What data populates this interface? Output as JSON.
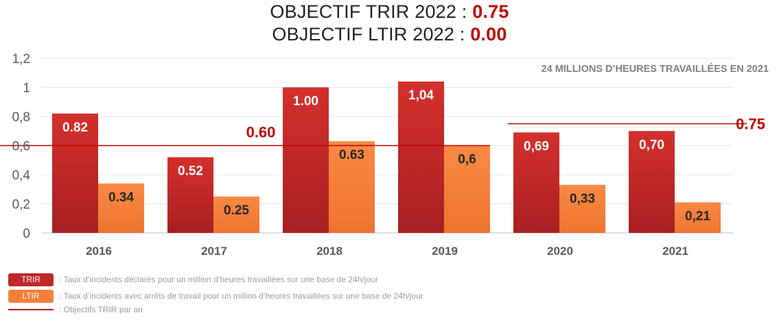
{
  "titles": {
    "trir": {
      "label": "OBJECTIF TRIR 2022 : ",
      "value": "0.75"
    },
    "ltir": {
      "label": "OBJECTIF LTIR 2022 : ",
      "value": "0.00"
    }
  },
  "chart_data": {
    "type": "bar",
    "categories": [
      "2016",
      "2017",
      "2018",
      "2019",
      "2020",
      "2021"
    ],
    "series": [
      {
        "name": "TRIR",
        "color": "#c0282a",
        "values": [
          0.82,
          0.52,
          1.0,
          1.04,
          0.69,
          0.7
        ],
        "labels": [
          "0.82",
          "0.52",
          "1.00",
          "1,04",
          "0,69",
          "0,70"
        ]
      },
      {
        "name": "LTIR",
        "color": "#f47f3b",
        "values": [
          0.34,
          0.25,
          0.63,
          0.6,
          0.33,
          0.21
        ],
        "labels": [
          "0.34",
          "0.25",
          "0.63",
          "0,6",
          "0,33",
          "0,21"
        ]
      }
    ],
    "ylim": [
      0,
      1.2
    ],
    "yticks": [
      0,
      0.2,
      0.4,
      0.6,
      0.8,
      1.0,
      1.2
    ],
    "ytick_labels": [
      "0",
      "0,2",
      "0,4",
      "0,6",
      "0,8",
      "1",
      "1,2"
    ],
    "grid": true,
    "objective_lines": [
      {
        "value": 0.6,
        "label": "0.60",
        "from_category": "2016",
        "to_category": "2019",
        "color": "#c00000"
      },
      {
        "value": 0.75,
        "label": "0.75",
        "from_category": "2020",
        "to_category": "2021",
        "color": "#c00000"
      }
    ],
    "annotation": "24 MILLIONS D’HEURES TRAVAILLÉES EN 2021"
  },
  "legend": [
    {
      "key": "TRIR",
      "color": "#c0282a",
      "desc": ": Taux d’incidents déclarés pour un million d’heures travaillées sur une base de 24h/jour"
    },
    {
      "key": "LTIR",
      "color": "#f47f3b",
      "desc": ": Taux d’incidents avec arrêts de travail pour un million d’heures travaillées sur une base de 24h/jour"
    },
    {
      "key": "",
      "color": "#c00000",
      "desc": ": Objectifs TRIR par an"
    }
  ]
}
